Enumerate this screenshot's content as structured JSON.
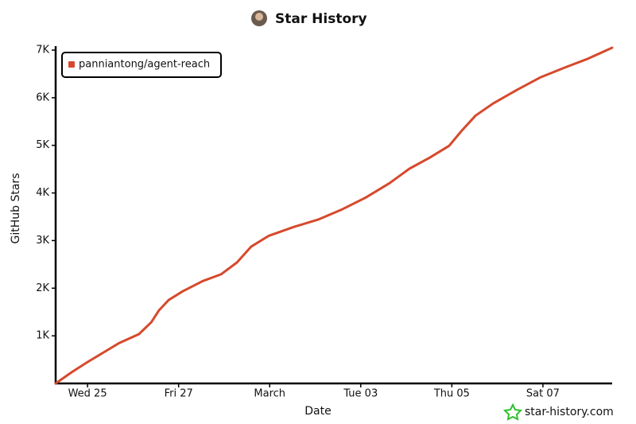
{
  "chart_data": {
    "type": "line",
    "title": "Star History",
    "xlabel": "Date",
    "ylabel": "GitHub Stars",
    "watermark": "star-history.com",
    "x": [
      -0.7,
      -0.35,
      0,
      0.35,
      0.7,
      1.13,
      1.4,
      1.57,
      1.78,
      2.09,
      2.53,
      2.93,
      3.28,
      3.59,
      3.98,
      4.54,
      5.06,
      5.59,
      6.11,
      6.63,
      7.07,
      7.51,
      7.94,
      8.2,
      8.52,
      8.9,
      9.42,
      9.95,
      10.47,
      10.99,
      11.52
    ],
    "series": [
      {
        "name": "panniantong/agent-reach",
        "color": "#d6492c",
        "values": [
          0,
          234,
          450,
          650,
          850,
          1035,
          1285,
          1535,
          1750,
          1935,
          2150,
          2290,
          2540,
          2870,
          3100,
          3290,
          3440,
          3655,
          3905,
          4205,
          4510,
          4740,
          4990,
          5290,
          5625,
          5875,
          6160,
          6430,
          6630,
          6820,
          7050
        ]
      }
    ],
    "xlim": [
      -0.7,
      11.52
    ],
    "xticks": [
      {
        "value": 0,
        "label": "Wed 25"
      },
      {
        "value": 2,
        "label": "Fri 27"
      },
      {
        "value": 4,
        "label": "March"
      },
      {
        "value": 6,
        "label": "Tue 03"
      },
      {
        "value": 8,
        "label": "Thu 05"
      },
      {
        "value": 10,
        "label": "Sat 07"
      }
    ],
    "ylim": [
      0,
      7050
    ],
    "yticks": [
      {
        "value": 1000,
        "label": "1K"
      },
      {
        "value": 2000,
        "label": "2K"
      },
      {
        "value": 3000,
        "label": "3K"
      },
      {
        "value": 4000,
        "label": "4K"
      },
      {
        "value": 5000,
        "label": "5K"
      },
      {
        "value": 6000,
        "label": "6K"
      },
      {
        "value": 7000,
        "label": "7K"
      }
    ],
    "legend": "upper-left"
  }
}
